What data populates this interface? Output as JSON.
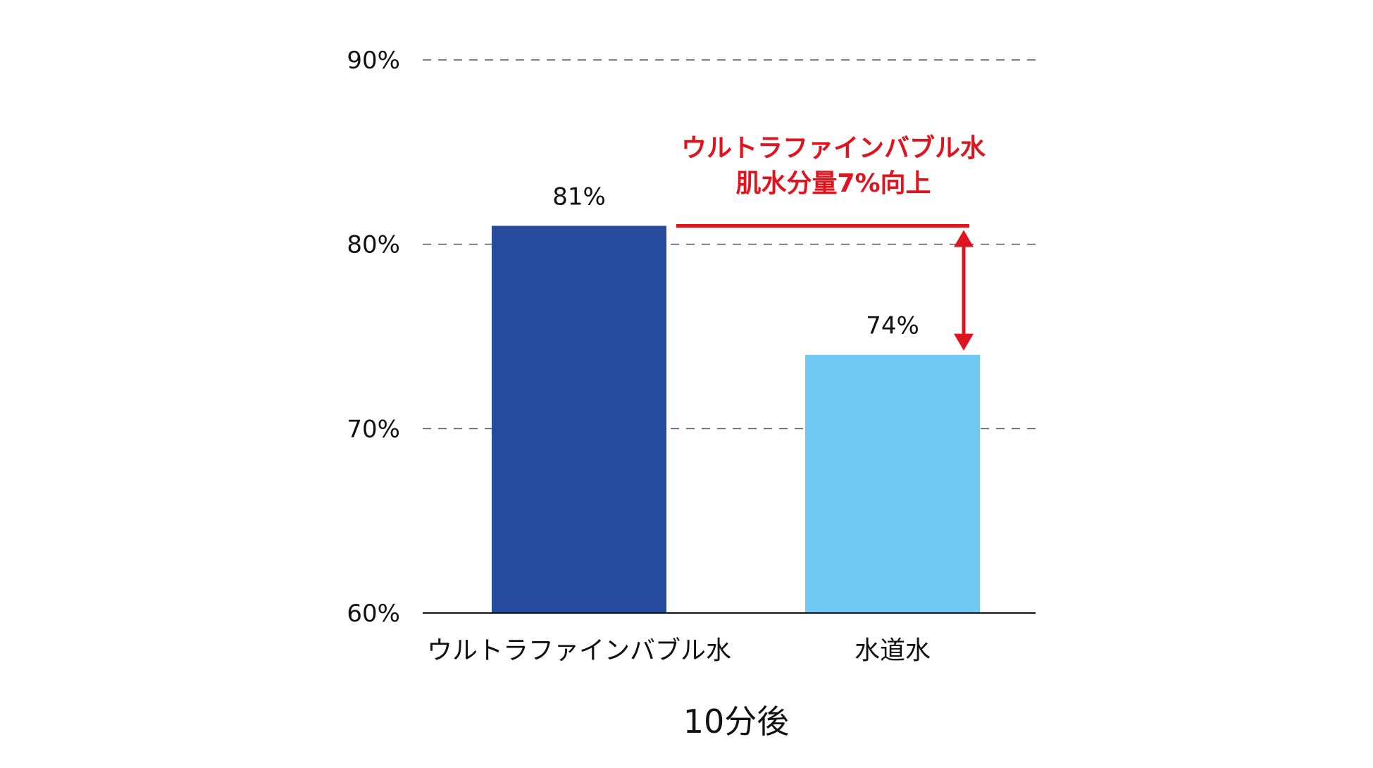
{
  "chart_data": {
    "type": "bar",
    "categories": [
      "ウルトラファインバブル水",
      "水道水"
    ],
    "values": [
      81,
      74
    ],
    "value_labels": [
      "81%",
      "74%"
    ],
    "colors": [
      "#264a9c",
      "#6ec8f2"
    ],
    "ylim": [
      60,
      90
    ],
    "yticks": [
      60,
      70,
      80,
      90
    ],
    "ytick_labels": [
      "60%",
      "70%",
      "80%",
      "90%"
    ],
    "xlabel": "10分後",
    "ylabel": "",
    "grid": "dashed horizontal",
    "annotation": {
      "lines": [
        "ウルトラファインバブル水",
        "肌水分量7%向上"
      ],
      "color": "#e0141e",
      "from_value": 81,
      "to_value": 74
    }
  }
}
